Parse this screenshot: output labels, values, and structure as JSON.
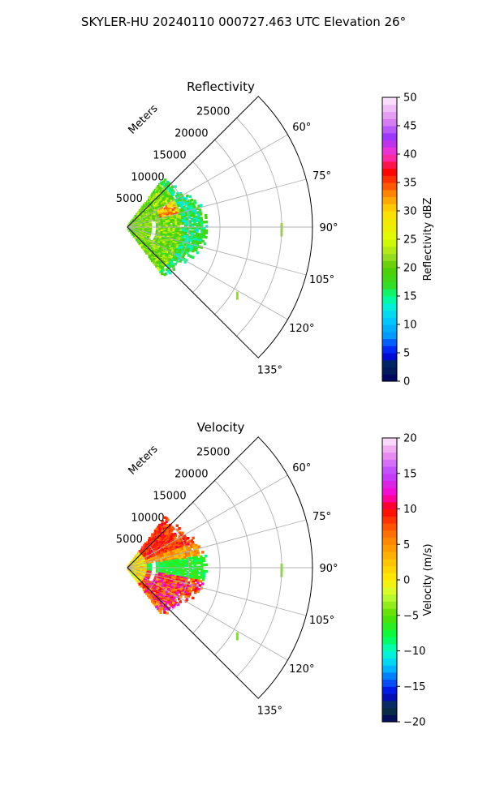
{
  "figure": {
    "suptitle": "SKYLER-HU  20240110  000727.463 UTC Elevation 26°"
  },
  "chart_data": [
    {
      "type": "polar-sector",
      "title": "Reflectivity",
      "range_label": "Meters",
      "range_ticks": [
        5000,
        10000,
        15000,
        20000,
        25000
      ],
      "range_tick_labels": [
        "5000",
        "10000",
        "15000",
        "20000",
        "25000"
      ],
      "range_max": 30000,
      "azimuth_range_deg": [
        45,
        135
      ],
      "azimuth_ticks": [
        60,
        75,
        90,
        105,
        120,
        135
      ],
      "azimuth_tick_labels": [
        "60°",
        "75°",
        "90°",
        "105°",
        "120°",
        "135°"
      ],
      "grid": true,
      "colorbar": {
        "label": "Reflectivity dBZ",
        "min": 0,
        "max": 50,
        "ticks": [
          0,
          5,
          10,
          15,
          20,
          25,
          30,
          35,
          40,
          45,
          50
        ],
        "tick_labels": [
          "0",
          "5",
          "10",
          "15",
          "20",
          "25",
          "30",
          "35",
          "40",
          "45",
          "50"
        ],
        "stops": [
          {
            "v": 0,
            "c": "#000066"
          },
          {
            "v": 3,
            "c": "#002a55"
          },
          {
            "v": 4,
            "c": "#0000cc"
          },
          {
            "v": 6,
            "c": "#0033ff"
          },
          {
            "v": 8,
            "c": "#0099ff"
          },
          {
            "v": 11,
            "c": "#00ccff"
          },
          {
            "v": 13,
            "c": "#00eedd"
          },
          {
            "v": 15,
            "c": "#00ff88"
          },
          {
            "v": 17,
            "c": "#33dd22"
          },
          {
            "v": 20,
            "c": "#55cc00"
          },
          {
            "v": 22,
            "c": "#99dd22"
          },
          {
            "v": 25,
            "c": "#ddff00"
          },
          {
            "v": 30,
            "c": "#ffdd00"
          },
          {
            "v": 33,
            "c": "#ff8800"
          },
          {
            "v": 37,
            "c": "#ff0000"
          },
          {
            "v": 40,
            "c": "#ff33cc"
          },
          {
            "v": 43,
            "c": "#9933ff"
          },
          {
            "v": 46,
            "c": "#dd88ee"
          },
          {
            "v": 50,
            "c": "#ffeeff"
          }
        ]
      }
    },
    {
      "type": "polar-sector",
      "title": "Velocity",
      "range_label": "Meters",
      "range_ticks": [
        5000,
        10000,
        15000,
        20000,
        25000
      ],
      "range_tick_labels": [
        "5000",
        "10000",
        "15000",
        "20000",
        "25000"
      ],
      "range_max": 30000,
      "azimuth_range_deg": [
        45,
        135
      ],
      "azimuth_ticks": [
        60,
        75,
        90,
        105,
        120,
        135
      ],
      "azimuth_tick_labels": [
        "60°",
        "75°",
        "90°",
        "105°",
        "120°",
        "135°"
      ],
      "grid": true,
      "colorbar": {
        "label": "Velocity (m/s)",
        "min": -20,
        "max": 20,
        "ticks": [
          -20,
          -15,
          -10,
          -5,
          0,
          5,
          10,
          15,
          20
        ],
        "tick_labels": [
          "−20",
          "−15",
          "−10",
          "−5",
          "0",
          "5",
          "10",
          "15",
          "20"
        ],
        "stops": [
          {
            "v": -20,
            "c": "#000066"
          },
          {
            "v": -18,
            "c": "#0a3a3a"
          },
          {
            "v": -16,
            "c": "#0000dd"
          },
          {
            "v": -14,
            "c": "#0066ff"
          },
          {
            "v": -12,
            "c": "#00ccff"
          },
          {
            "v": -10,
            "c": "#00ffcc"
          },
          {
            "v": -8,
            "c": "#00ff44"
          },
          {
            "v": -5,
            "c": "#55dd00"
          },
          {
            "v": -2,
            "c": "#ccff33"
          },
          {
            "v": 0,
            "c": "#ffee00"
          },
          {
            "v": 3,
            "c": "#ffbb00"
          },
          {
            "v": 7,
            "c": "#ff6600"
          },
          {
            "v": 10,
            "c": "#ff0000"
          },
          {
            "v": 12,
            "c": "#ff00cc"
          },
          {
            "v": 15,
            "c": "#bb44ff"
          },
          {
            "v": 18,
            "c": "#ee99ee"
          },
          {
            "v": 20,
            "c": "#ffeeff"
          }
        ]
      }
    }
  ]
}
